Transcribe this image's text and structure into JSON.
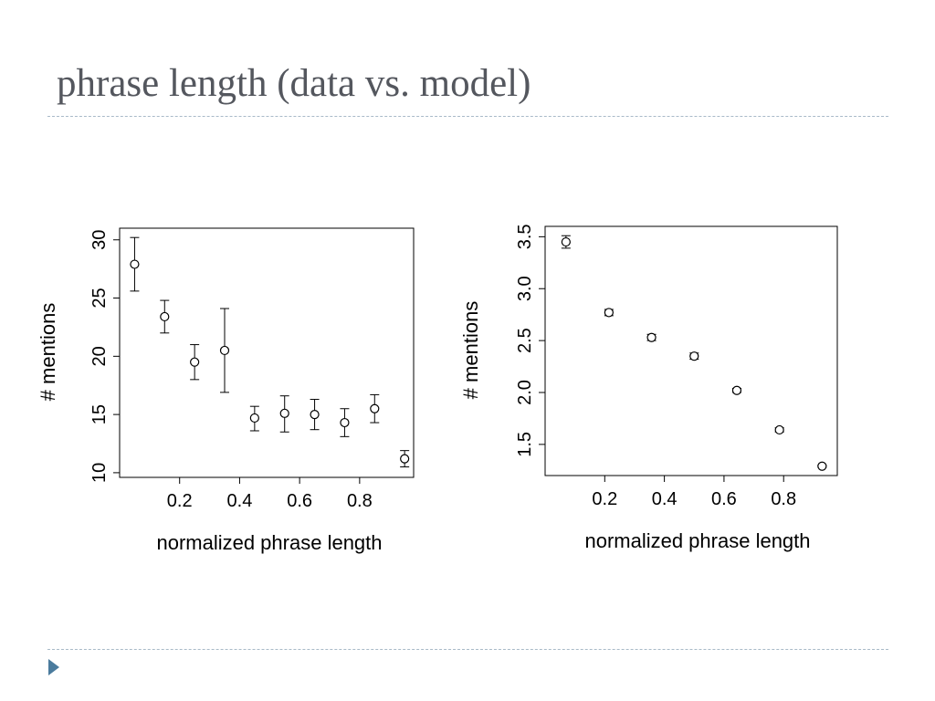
{
  "slide": {
    "title": "phrase length (data vs. model)",
    "accent_color": "#4a7b9d",
    "rule_color": "#a9bac8",
    "bullet_icon": "triangle-bullet-icon"
  },
  "chart_data": [
    {
      "type": "scatter",
      "title": "",
      "xlabel": "normalized phrase length",
      "ylabel": "# mentions",
      "xlim": [
        0.0,
        0.98
      ],
      "ylim": [
        9.6,
        31.0
      ],
      "xticks": [
        "0.2",
        "0.4",
        "0.6",
        "0.8"
      ],
      "yticks": [
        "10",
        "15",
        "20",
        "25",
        "30"
      ],
      "grid": false,
      "error_bars": true,
      "points": [
        {
          "x": 0.05,
          "y": 27.9,
          "lo": 25.6,
          "hi": 30.2
        },
        {
          "x": 0.15,
          "y": 23.4,
          "lo": 22.0,
          "hi": 24.8
        },
        {
          "x": 0.25,
          "y": 19.5,
          "lo": 18.0,
          "hi": 21.0
        },
        {
          "x": 0.35,
          "y": 20.5,
          "lo": 16.9,
          "hi": 24.1
        },
        {
          "x": 0.45,
          "y": 14.7,
          "lo": 13.6,
          "hi": 15.7
        },
        {
          "x": 0.55,
          "y": 15.1,
          "lo": 13.5,
          "hi": 16.6
        },
        {
          "x": 0.65,
          "y": 15.0,
          "lo": 13.7,
          "hi": 16.3
        },
        {
          "x": 0.75,
          "y": 14.3,
          "lo": 13.1,
          "hi": 15.5
        },
        {
          "x": 0.85,
          "y": 15.5,
          "lo": 14.3,
          "hi": 16.7
        },
        {
          "x": 0.95,
          "y": 11.2,
          "lo": 10.5,
          "hi": 11.9
        }
      ]
    },
    {
      "type": "scatter",
      "title": "",
      "xlabel": "normalized phrase length",
      "ylabel": "# mentions",
      "xlim": [
        0.0,
        0.98
      ],
      "ylim": [
        1.2,
        3.6
      ],
      "xticks": [
        "0.2",
        "0.4",
        "0.6",
        "0.8"
      ],
      "yticks": [
        "1.5",
        "2.0",
        "2.5",
        "3.0",
        "3.5"
      ],
      "grid": false,
      "error_bars": true,
      "points": [
        {
          "x": 0.07,
          "y": 3.45,
          "lo": 3.39,
          "hi": 3.51
        },
        {
          "x": 0.214,
          "y": 2.77,
          "lo": 2.74,
          "hi": 2.8
        },
        {
          "x": 0.357,
          "y": 2.53,
          "lo": 2.5,
          "hi": 2.56
        },
        {
          "x": 0.5,
          "y": 2.35,
          "lo": 2.32,
          "hi": 2.38
        },
        {
          "x": 0.643,
          "y": 2.02,
          "lo": 2.0,
          "hi": 2.04
        },
        {
          "x": 0.786,
          "y": 1.64,
          "lo": 1.62,
          "hi": 1.66
        },
        {
          "x": 0.929,
          "y": 1.29,
          "lo": 1.28,
          "hi": 1.3
        }
      ]
    }
  ]
}
